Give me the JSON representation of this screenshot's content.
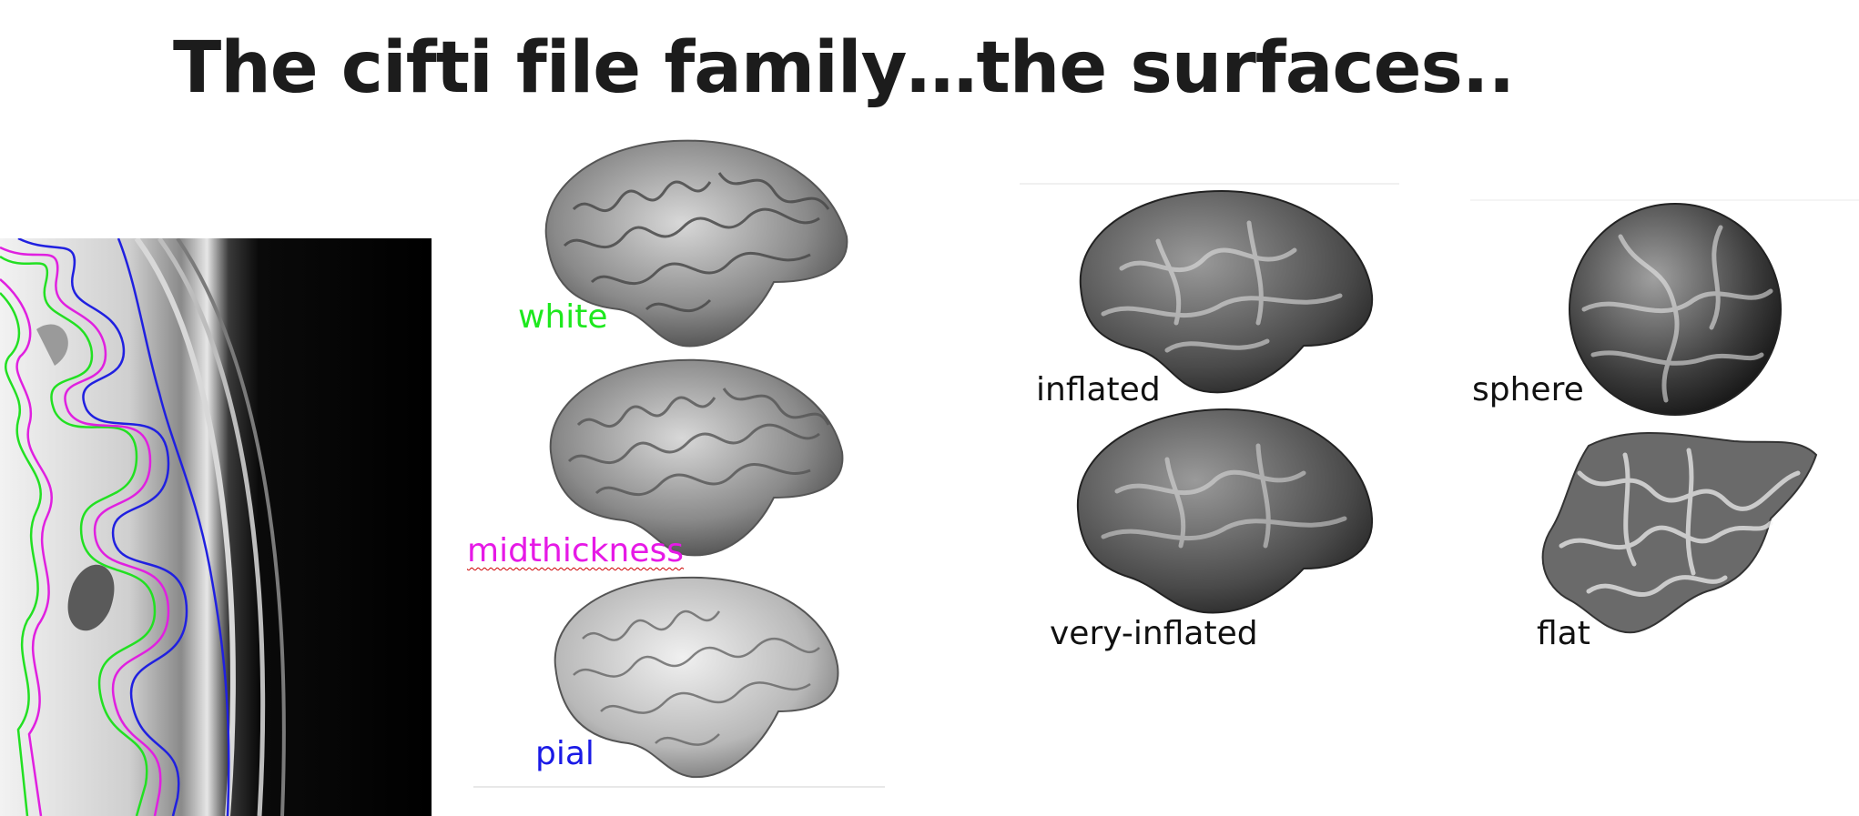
{
  "slide": {
    "title": "The cifti file family…the surfaces.."
  },
  "surfaces": {
    "white": {
      "label": "white",
      "color": "#1ee81e"
    },
    "midthickness": {
      "label": "midthickness",
      "color": "#e619e6"
    },
    "pial": {
      "label": "pial",
      "color": "#1a1ae6"
    },
    "inflated": {
      "label": "inflated",
      "color": "#111111"
    },
    "very_inflated": {
      "label": "very-inflated",
      "color": "#111111"
    },
    "sphere": {
      "label": "sphere",
      "color": "#111111"
    },
    "flat": {
      "label": "flat",
      "color": "#111111"
    }
  }
}
